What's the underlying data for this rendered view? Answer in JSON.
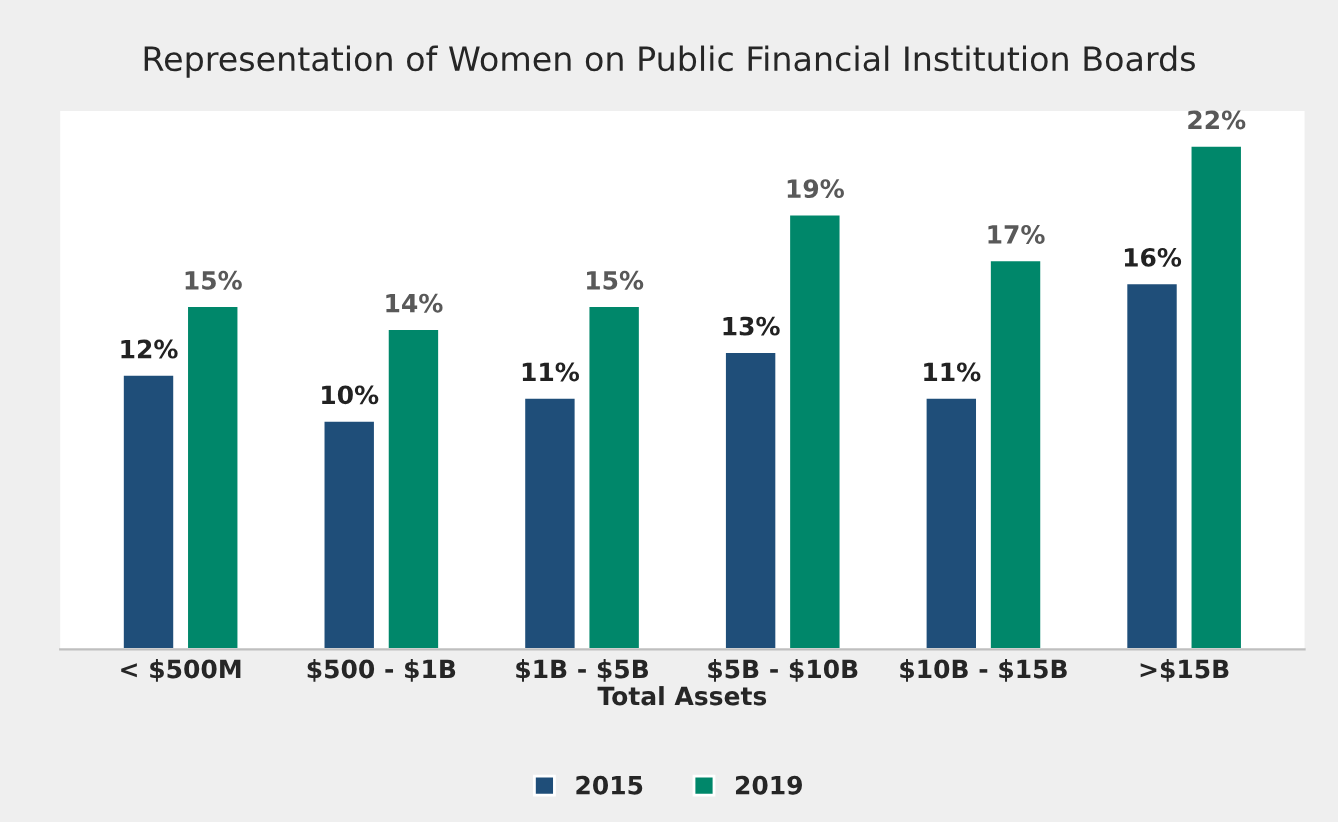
{
  "chart_data": {
    "type": "bar",
    "title": "Representation of Women on Public Financial Institution Boards",
    "xlabel": "Total Assets",
    "categories": [
      "< $500M",
      "$500 - $1B",
      "$1B - $5B",
      "$5B - $10B",
      "$10B - $15B",
      ">$15B"
    ],
    "series": [
      {
        "name": "2015",
        "color": "#1f4e79",
        "values": [
          12,
          10,
          11,
          13,
          11,
          16
        ],
        "value_labels": [
          "12%",
          "10%",
          "11%",
          "13%",
          "11%",
          "16%"
        ]
      },
      {
        "name": "2019",
        "color": "#00876a",
        "values": [
          15,
          14,
          15,
          19,
          17,
          22
        ],
        "value_labels": [
          "15%",
          "14%",
          "15%",
          "19%",
          "17%",
          "22%"
        ]
      }
    ],
    "ylim": [
      0,
      23.5
    ],
    "tick_labels": "x",
    "legend": "bottom",
    "grid": false
  }
}
